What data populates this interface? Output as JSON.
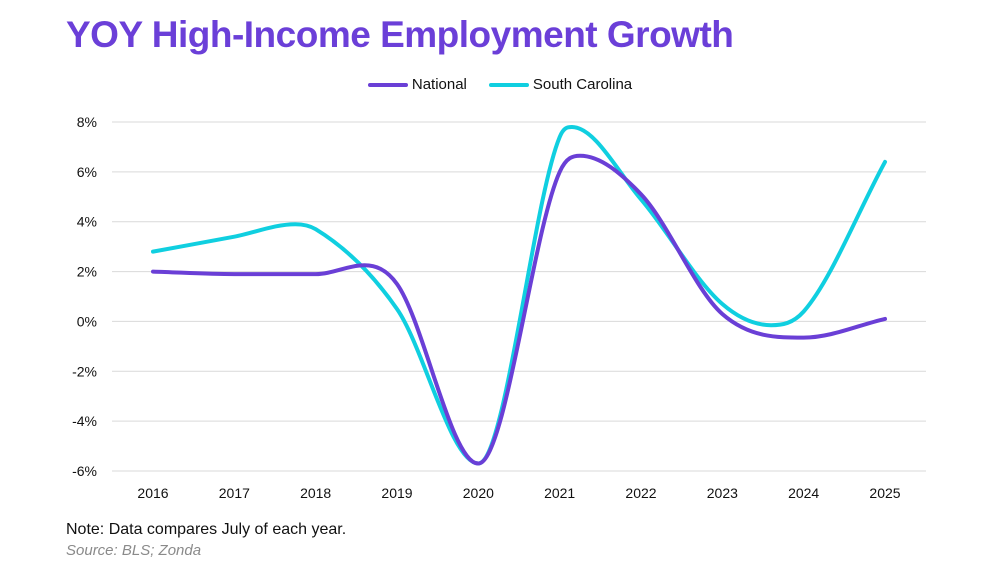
{
  "chart_data": {
    "type": "line",
    "title": "YOY High-Income Employment Growth",
    "categories": [
      "2016",
      "2017",
      "2018",
      "2019",
      "2020",
      "2021",
      "2022",
      "2023",
      "2024",
      "2025"
    ],
    "series": [
      {
        "name": "National",
        "color": "#6a3fd6",
        "points": [
          [
            2016,
            2.0
          ],
          [
            2017,
            1.9
          ],
          [
            2018,
            1.9
          ],
          [
            2018.6,
            2.25
          ],
          [
            2019,
            1.5
          ],
          [
            2020,
            -5.7
          ],
          [
            2021,
            6.0
          ],
          [
            2021.25,
            6.65
          ],
          [
            2022,
            5.1
          ],
          [
            2023,
            0.3
          ],
          [
            2024,
            -0.65
          ],
          [
            2025,
            0.1
          ]
        ]
      },
      {
        "name": "South Carolina",
        "color": "#10cfe0",
        "points": [
          [
            2016,
            2.8
          ],
          [
            2017,
            3.4
          ],
          [
            2017.75,
            3.9
          ],
          [
            2018,
            3.7
          ],
          [
            2019,
            0.5
          ],
          [
            2020,
            -5.7
          ],
          [
            2021,
            7.4
          ],
          [
            2021.15,
            7.8
          ],
          [
            2022,
            4.9
          ],
          [
            2023,
            0.7
          ],
          [
            2023.6,
            -0.15
          ],
          [
            2024,
            0.4
          ],
          [
            2025,
            6.4
          ]
        ]
      }
    ],
    "ylim": [
      -6,
      8
    ],
    "yticks": [
      8,
      6,
      4,
      2,
      0,
      -2,
      -4,
      -6
    ],
    "ytick_labels": [
      "8%",
      "6%",
      "4%",
      "2%",
      "0%",
      "-2%",
      "-4%",
      "-6%"
    ],
    "xlabel": "",
    "ylabel": "",
    "grid": true,
    "legend_position": "top-center"
  },
  "footer": {
    "note": "Note: Data compares July of each year.",
    "source": "Source: BLS; Zonda"
  }
}
